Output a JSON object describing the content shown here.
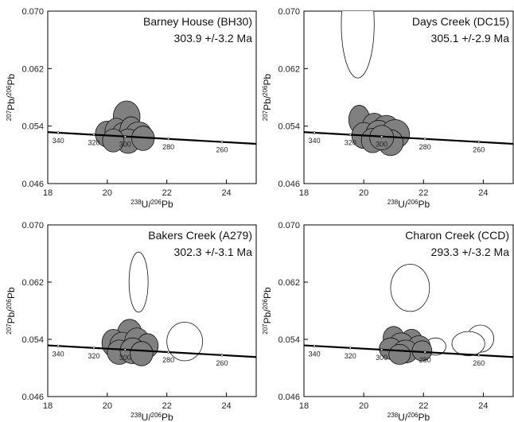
{
  "colors": {
    "filled": "#808080",
    "open": "#ffffff",
    "stroke": "#111111",
    "concordia": "#000000"
  },
  "chart_data": [
    {
      "type": "scatter",
      "title": "Barney House (BH30)",
      "subtitle": "303.9 +/-3.2 Ma",
      "xlabel": {
        "pre": "238",
        "mid": "U/",
        "sup2": "206",
        "post": "Pb"
      },
      "ylabel": {
        "pre": "207",
        "mid": "Pb/",
        "sup2": "206",
        "post": "Pb"
      },
      "xlim": [
        18,
        25
      ],
      "ylim": [
        0.046,
        0.07
      ],
      "xticks": [
        18,
        20,
        22,
        24
      ],
      "yticks": [
        0.046,
        0.054,
        0.062,
        0.07
      ],
      "xtick_labels": [
        "18",
        "20",
        "22",
        "24"
      ],
      "ytick_labels": [
        "0.046",
        "0.054",
        "0.062",
        "0.070"
      ],
      "concordia": {
        "x": [
          18,
          25
        ],
        "y": [
          0.05316,
          0.05153
        ]
      },
      "concordia_labels": [
        {
          "x": 18.35,
          "label": "340"
        },
        {
          "x": 19.55,
          "label": "320"
        },
        {
          "x": 20.6,
          "label": "300"
        },
        {
          "x": 22.05,
          "label": "280"
        },
        {
          "x": 23.85,
          "label": "260"
        }
      ],
      "ellipses": [
        {
          "x": 20.65,
          "y": 0.0553,
          "rx": 0.45,
          "ry": 0.0022,
          "fill": "filled"
        },
        {
          "x": 20.0,
          "y": 0.0529,
          "rx": 0.4,
          "ry": 0.0018,
          "fill": "filled"
        },
        {
          "x": 20.3,
          "y": 0.0532,
          "rx": 0.38,
          "ry": 0.0019,
          "fill": "filled"
        },
        {
          "x": 20.55,
          "y": 0.0528,
          "rx": 0.4,
          "ry": 0.0017,
          "fill": "filled"
        },
        {
          "x": 20.8,
          "y": 0.0533,
          "rx": 0.38,
          "ry": 0.002,
          "fill": "filled"
        },
        {
          "x": 21.05,
          "y": 0.0527,
          "rx": 0.45,
          "ry": 0.0019,
          "fill": "filled"
        },
        {
          "x": 20.7,
          "y": 0.0519,
          "rx": 0.4,
          "ry": 0.0017,
          "fill": "filled"
        },
        {
          "x": 20.2,
          "y": 0.052,
          "rx": 0.36,
          "ry": 0.0016,
          "fill": "filled"
        },
        {
          "x": 21.2,
          "y": 0.0523,
          "rx": 0.38,
          "ry": 0.0017,
          "fill": "filled"
        }
      ]
    },
    {
      "type": "scatter",
      "title": "Days Creek (DC15)",
      "subtitle": "305.1 +/-2.9 Ma",
      "xlabel": {
        "pre": "238",
        "mid": "U/",
        "sup2": "206",
        "post": "Pb"
      },
      "ylabel": {
        "pre": "207",
        "mid": "Pb/",
        "sup2": "206",
        "post": "Pb"
      },
      "xlim": [
        18,
        25
      ],
      "ylim": [
        0.046,
        0.07
      ],
      "xticks": [
        18,
        20,
        22,
        24
      ],
      "yticks": [
        0.046,
        0.054,
        0.062,
        0.07
      ],
      "xtick_labels": [
        "18",
        "20",
        "22",
        "24"
      ],
      "ytick_labels": [
        "0.046",
        "0.054",
        "0.062",
        "0.070"
      ],
      "concordia": {
        "x": [
          18,
          25
        ],
        "y": [
          0.05316,
          0.05153
        ]
      },
      "concordia_labels": [
        {
          "x": 18.35,
          "label": "340"
        },
        {
          "x": 19.55,
          "label": "320"
        },
        {
          "x": 20.6,
          "label": "300"
        },
        {
          "x": 22.05,
          "label": "280"
        },
        {
          "x": 23.85,
          "label": "260"
        }
      ],
      "ellipses": [
        {
          "x": 19.8,
          "y": 0.0682,
          "rx": 0.55,
          "ry": 0.0075,
          "fill": "open"
        },
        {
          "x": 19.85,
          "y": 0.0549,
          "rx": 0.35,
          "ry": 0.002,
          "fill": "filled"
        },
        {
          "x": 20.35,
          "y": 0.0539,
          "rx": 0.4,
          "ry": 0.0019,
          "fill": "filled"
        },
        {
          "x": 20.75,
          "y": 0.0536,
          "rx": 0.45,
          "ry": 0.0019,
          "fill": "filled"
        },
        {
          "x": 20.0,
          "y": 0.0527,
          "rx": 0.4,
          "ry": 0.0018,
          "fill": "filled"
        },
        {
          "x": 20.5,
          "y": 0.053,
          "rx": 0.42,
          "ry": 0.0018,
          "fill": "filled"
        },
        {
          "x": 21.05,
          "y": 0.0529,
          "rx": 0.48,
          "ry": 0.002,
          "fill": "filled"
        },
        {
          "x": 20.3,
          "y": 0.052,
          "rx": 0.38,
          "ry": 0.0017,
          "fill": "filled"
        },
        {
          "x": 20.9,
          "y": 0.0517,
          "rx": 0.42,
          "ry": 0.0018,
          "fill": "filled"
        },
        {
          "x": 20.6,
          "y": 0.0524,
          "rx": 0.4,
          "ry": 0.0017,
          "fill": "filled"
        }
      ]
    },
    {
      "type": "scatter",
      "title": "Bakers Creek (A279)",
      "subtitle": "302.3 +/-3.1 Ma",
      "xlabel": {
        "pre": "238",
        "mid": "U/",
        "sup2": "206",
        "post": "Pb"
      },
      "ylabel": {
        "pre": "207",
        "mid": "Pb/",
        "sup2": "206",
        "post": "Pb"
      },
      "xlim": [
        18,
        25
      ],
      "ylim": [
        0.046,
        0.07
      ],
      "xticks": [
        18,
        20,
        22,
        24
      ],
      "yticks": [
        0.046,
        0.054,
        0.062,
        0.07
      ],
      "xtick_labels": [
        "18",
        "20",
        "22",
        "24"
      ],
      "ytick_labels": [
        "0.046",
        "0.054",
        "0.062",
        "0.070"
      ],
      "concordia": {
        "x": [
          18,
          25
        ],
        "y": [
          0.05316,
          0.05153
        ]
      },
      "concordia_labels": [
        {
          "x": 18.35,
          "label": "340"
        },
        {
          "x": 19.55,
          "label": "320"
        },
        {
          "x": 20.6,
          "label": "300"
        },
        {
          "x": 22.05,
          "label": "280"
        },
        {
          "x": 23.85,
          "label": "260"
        }
      ],
      "ellipses": [
        {
          "x": 21.05,
          "y": 0.062,
          "rx": 0.32,
          "ry": 0.0042,
          "fill": "open"
        },
        {
          "x": 22.6,
          "y": 0.0537,
          "rx": 0.6,
          "ry": 0.0027,
          "fill": "open"
        },
        {
          "x": 20.75,
          "y": 0.0547,
          "rx": 0.42,
          "ry": 0.0021,
          "fill": "filled"
        },
        {
          "x": 20.2,
          "y": 0.0535,
          "rx": 0.38,
          "ry": 0.0019,
          "fill": "filled"
        },
        {
          "x": 20.5,
          "y": 0.0531,
          "rx": 0.42,
          "ry": 0.0019,
          "fill": "filled"
        },
        {
          "x": 21.0,
          "y": 0.0536,
          "rx": 0.42,
          "ry": 0.002,
          "fill": "filled"
        },
        {
          "x": 21.35,
          "y": 0.0531,
          "rx": 0.36,
          "ry": 0.0017,
          "fill": "filled"
        },
        {
          "x": 20.4,
          "y": 0.0522,
          "rx": 0.4,
          "ry": 0.0017,
          "fill": "filled"
        },
        {
          "x": 20.85,
          "y": 0.0524,
          "rx": 0.42,
          "ry": 0.0018,
          "fill": "filled"
        },
        {
          "x": 21.15,
          "y": 0.052,
          "rx": 0.38,
          "ry": 0.0017,
          "fill": "filled"
        }
      ]
    },
    {
      "type": "scatter",
      "title": "Charon Creek (CCD)",
      "subtitle": "293.3 +/-3.2 Ma",
      "xlabel": {
        "pre": "238",
        "mid": "U/",
        "sup2": "206",
        "post": "Pb"
      },
      "ylabel": {
        "pre": "207",
        "mid": "Pb/",
        "sup2": "206",
        "post": "Pb"
      },
      "xlim": [
        18,
        25
      ],
      "ylim": [
        0.046,
        0.07
      ],
      "xticks": [
        18,
        20,
        22,
        24
      ],
      "yticks": [
        0.046,
        0.054,
        0.062,
        0.07
      ],
      "xtick_labels": [
        "18",
        "20",
        "22",
        "24"
      ],
      "ytick_labels": [
        "0.046",
        "0.054",
        "0.062",
        "0.070"
      ],
      "concordia": {
        "x": [
          18,
          25
        ],
        "y": [
          0.05316,
          0.05153
        ]
      },
      "concordia_labels": [
        {
          "x": 18.35,
          "label": "340"
        },
        {
          "x": 19.55,
          "label": "320"
        },
        {
          "x": 20.6,
          "label": "300"
        },
        {
          "x": 22.05,
          "label": "280"
        },
        {
          "x": 23.85,
          "label": "260"
        }
      ],
      "ellipses": [
        {
          "x": 21.55,
          "y": 0.0612,
          "rx": 0.65,
          "ry": 0.0033,
          "fill": "open"
        },
        {
          "x": 23.9,
          "y": 0.0541,
          "rx": 0.45,
          "ry": 0.0019,
          "fill": "open"
        },
        {
          "x": 23.5,
          "y": 0.0534,
          "rx": 0.55,
          "ry": 0.0017,
          "fill": "open"
        },
        {
          "x": 22.4,
          "y": 0.053,
          "rx": 0.35,
          "ry": 0.0012,
          "fill": "open"
        },
        {
          "x": 21.0,
          "y": 0.0542,
          "rx": 0.35,
          "ry": 0.0016,
          "fill": "filled"
        },
        {
          "x": 21.6,
          "y": 0.0538,
          "rx": 0.36,
          "ry": 0.0016,
          "fill": "filled"
        },
        {
          "x": 21.25,
          "y": 0.0532,
          "rx": 0.42,
          "ry": 0.0017,
          "fill": "filled"
        },
        {
          "x": 21.85,
          "y": 0.053,
          "rx": 0.38,
          "ry": 0.0015,
          "fill": "filled"
        },
        {
          "x": 20.9,
          "y": 0.0527,
          "rx": 0.38,
          "ry": 0.0015,
          "fill": "filled"
        },
        {
          "x": 21.4,
          "y": 0.0523,
          "rx": 0.42,
          "ry": 0.0016,
          "fill": "filled"
        },
        {
          "x": 21.95,
          "y": 0.0524,
          "rx": 0.33,
          "ry": 0.0014,
          "fill": "filled"
        },
        {
          "x": 21.2,
          "y": 0.0519,
          "rx": 0.36,
          "ry": 0.0014,
          "fill": "filled"
        }
      ]
    }
  ]
}
